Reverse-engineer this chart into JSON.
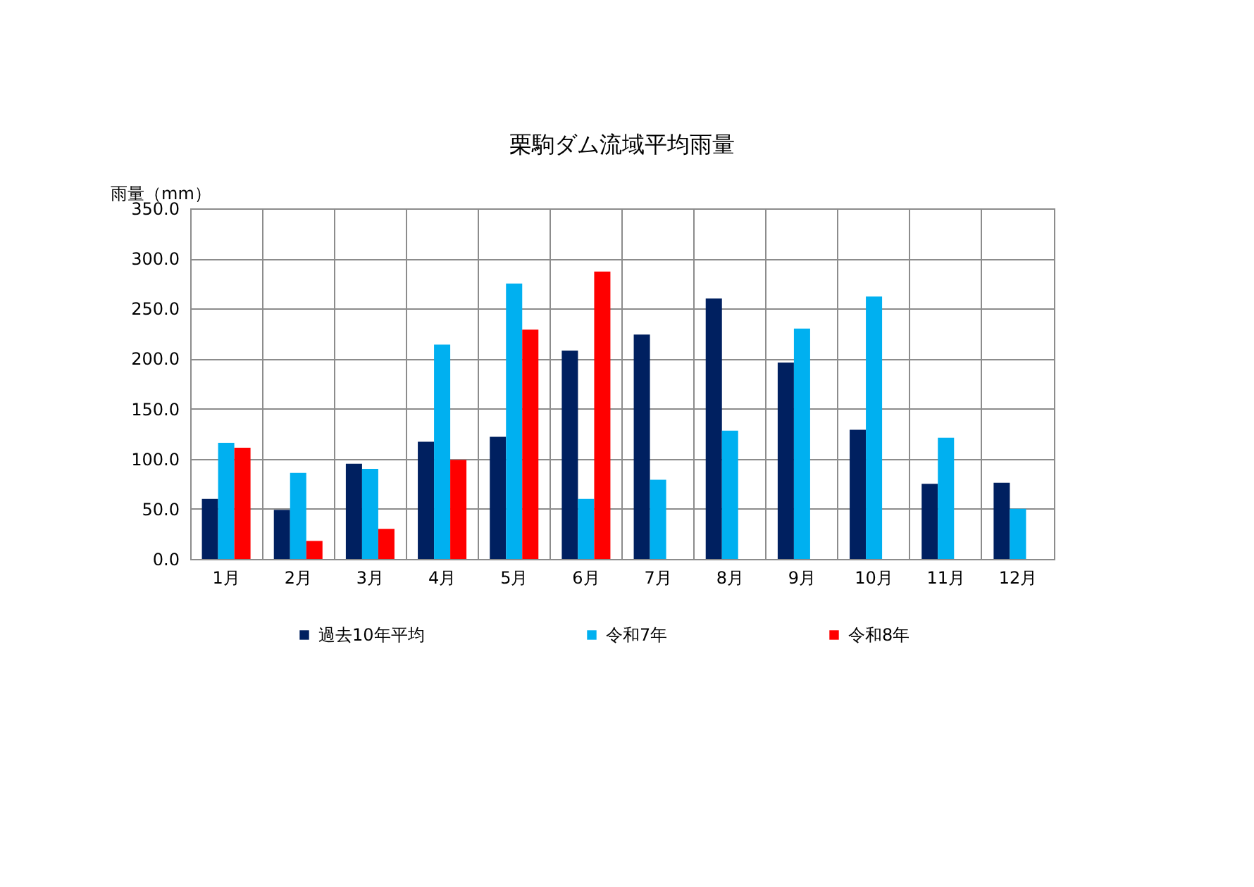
{
  "chart_data": {
    "type": "bar",
    "title": "栗駒ダム流域平均雨量",
    "ylabel": "雨量（mm）",
    "categories": [
      "1月",
      "2月",
      "3月",
      "4月",
      "5月",
      "6月",
      "7月",
      "8月",
      "9月",
      "10月",
      "11月",
      "12月"
    ],
    "series": [
      {
        "name": "過去10年平均",
        "color": "#002060",
        "values": [
          60,
          49,
          95,
          117,
          122,
          208,
          224,
          260,
          196,
          129,
          75,
          76
        ]
      },
      {
        "name": "令和7年",
        "color": "#00b0f0",
        "values": [
          116,
          86,
          90,
          214,
          275,
          60,
          79,
          128,
          230,
          262,
          121,
          50
        ]
      },
      {
        "name": "令和8年",
        "color": "#ff0000",
        "values": [
          111,
          18,
          30,
          99,
          229,
          287,
          null,
          null,
          null,
          null,
          null,
          null
        ]
      }
    ],
    "ylim": [
      0,
      350
    ],
    "yticks": [
      {
        "value": 0,
        "label": "0.0"
      },
      {
        "value": 50,
        "label": "50.0"
      },
      {
        "value": 100,
        "label": "100.0"
      },
      {
        "value": 150,
        "label": "150.0"
      },
      {
        "value": 200,
        "label": "200.0"
      },
      {
        "value": 250,
        "label": "250.0"
      },
      {
        "value": 300,
        "label": "300.0"
      },
      {
        "value": 350,
        "label": "350.0"
      }
    ],
    "grid": true,
    "legend": "bottom"
  }
}
